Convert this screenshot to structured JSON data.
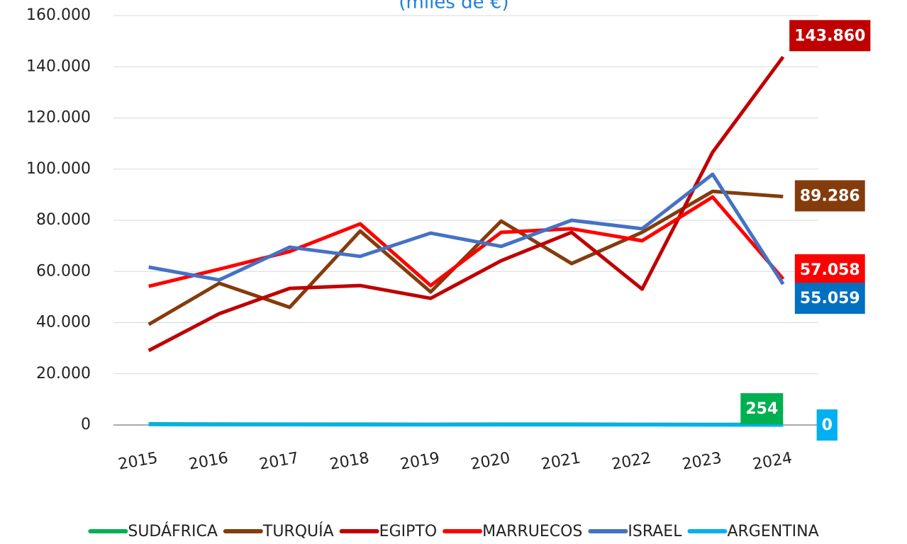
{
  "chart_data": {
    "type": "line",
    "subtitle": "(miles de €)",
    "categories": [
      "2015",
      "2016",
      "2017",
      "2018",
      "2019",
      "2020",
      "2021",
      "2022",
      "2023",
      "2024"
    ],
    "series": [
      {
        "name": "SUDÁFRICA",
        "color": "#00b050",
        "label_color": "#00b050",
        "values": [
          400,
          350,
          300,
          300,
          250,
          300,
          300,
          250,
          200,
          254
        ],
        "value_labels": [
          null,
          null,
          null,
          null,
          null,
          null,
          null,
          null,
          null,
          "254"
        ]
      },
      {
        "name": "TURQUÍA",
        "color": "#843c0c",
        "label_color": "#843c0c",
        "values": [
          39300,
          55400,
          46000,
          75800,
          52000,
          79700,
          63100,
          75300,
          91300,
          89286
        ],
        "value_labels": [
          null,
          null,
          null,
          null,
          null,
          null,
          null,
          null,
          null,
          "89.286"
        ]
      },
      {
        "name": "EGIPTO",
        "color": "#c00000",
        "label_color": "#c00000",
        "values": [
          29100,
          43500,
          53400,
          54500,
          49500,
          64200,
          75300,
          53100,
          106600,
          143860
        ],
        "value_labels": [
          null,
          null,
          null,
          null,
          null,
          null,
          null,
          null,
          null,
          "143.860"
        ]
      },
      {
        "name": "MARRUECOS",
        "color": "#ff0000",
        "label_color": "#ff0000",
        "values": [
          54200,
          60900,
          67800,
          78600,
          54500,
          75300,
          76700,
          72000,
          89100,
          57058
        ],
        "value_labels": [
          null,
          null,
          null,
          null,
          null,
          null,
          null,
          null,
          null,
          "57.058"
        ]
      },
      {
        "name": "ISRAEL",
        "color": "#4472c4",
        "label_color": "#0070c0",
        "values": [
          61700,
          56700,
          69500,
          65900,
          75000,
          69800,
          80000,
          76700,
          98000,
          55059
        ],
        "value_labels": [
          null,
          null,
          null,
          null,
          null,
          null,
          null,
          null,
          null,
          "55.059"
        ]
      },
      {
        "name": "ARGENTINA",
        "color": "#00b0f0",
        "label_color": "#00b0f0",
        "values": [
          200,
          150,
          150,
          100,
          100,
          100,
          100,
          100,
          50,
          0
        ],
        "value_labels": [
          null,
          null,
          null,
          null,
          null,
          null,
          null,
          null,
          null,
          "0"
        ]
      }
    ],
    "ylim": [
      0,
      160000
    ],
    "yticks": [
      0,
      {
        "value": 20000,
        "label": "20.000"
      },
      {
        "value": 40000,
        "label": "40.000"
      },
      {
        "value": 60000,
        "label": "60.000"
      },
      {
        "value": 80000,
        "label": "80.000"
      },
      {
        "value": 100000,
        "label": "100.000"
      },
      {
        "value": 120000,
        "label": "120.000"
      },
      {
        "value": 140000,
        "label": "140.000"
      },
      {
        "value": 160000,
        "label": "160.000"
      }
    ],
    "grid": true,
    "legend": "bottom"
  }
}
